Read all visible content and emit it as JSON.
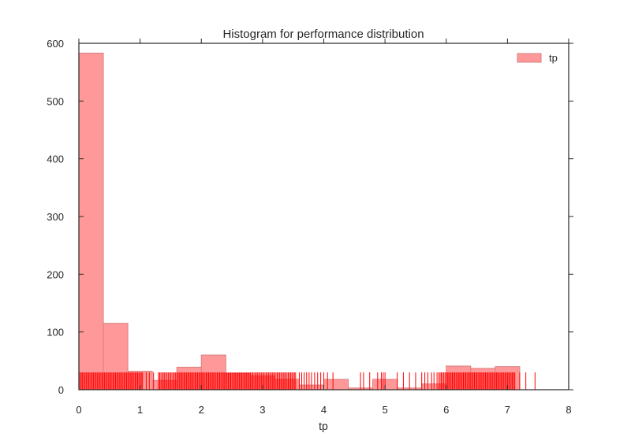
{
  "chart_data": {
    "type": "bar",
    "title": "Histogram for performance distribution",
    "xlabel": "tp",
    "ylabel": "",
    "xlim": [
      0,
      8
    ],
    "ylim": [
      0,
      600
    ],
    "xticks": [
      "0",
      "1",
      "2",
      "3",
      "4",
      "5",
      "6",
      "7",
      "8"
    ],
    "yticks": [
      "0",
      "100",
      "200",
      "300",
      "400",
      "500",
      "600"
    ],
    "legend": {
      "label": "tp",
      "position": "top-right"
    },
    "colors": {
      "bar": "#ff9999",
      "bar_edge": "#d98080",
      "rug": "#ff0000",
      "axis": "#262626"
    },
    "bins": [
      {
        "x0": 0.0,
        "x1": 0.4,
        "count": 583
      },
      {
        "x0": 0.4,
        "x1": 0.8,
        "count": 115
      },
      {
        "x0": 0.8,
        "x1": 1.2,
        "count": 32
      },
      {
        "x0": 1.2,
        "x1": 1.6,
        "count": 16
      },
      {
        "x0": 1.6,
        "x1": 2.0,
        "count": 39
      },
      {
        "x0": 2.0,
        "x1": 2.4,
        "count": 60
      },
      {
        "x0": 2.4,
        "x1": 2.8,
        "count": 28
      },
      {
        "x0": 2.8,
        "x1": 3.2,
        "count": 24
      },
      {
        "x0": 3.2,
        "x1": 3.6,
        "count": 18
      },
      {
        "x0": 3.6,
        "x1": 4.0,
        "count": 8
      },
      {
        "x0": 4.0,
        "x1": 4.4,
        "count": 18
      },
      {
        "x0": 4.4,
        "x1": 4.8,
        "count": 3
      },
      {
        "x0": 4.8,
        "x1": 5.2,
        "count": 18
      },
      {
        "x0": 5.2,
        "x1": 5.6,
        "count": 3
      },
      {
        "x0": 5.6,
        "x1": 6.0,
        "count": 10
      },
      {
        "x0": 6.0,
        "x1": 6.4,
        "count": 41
      },
      {
        "x0": 6.4,
        "x1": 6.8,
        "count": 37
      },
      {
        "x0": 6.8,
        "x1": 7.2,
        "count": 40
      }
    ],
    "rug": {
      "height_value": 30,
      "dense_segments": [
        [
          0.0,
          1.05
        ],
        [
          1.3,
          3.55
        ],
        [
          5.88,
          7.12
        ]
      ],
      "dense_step": 0.02,
      "points": [
        1.1,
        1.15,
        1.22,
        3.6,
        3.64,
        3.68,
        3.72,
        3.76,
        3.8,
        3.85,
        3.9,
        3.95,
        4.0,
        4.06,
        4.15,
        4.6,
        4.65,
        4.75,
        4.88,
        4.94,
        4.97,
        5.0,
        5.2,
        5.3,
        5.4,
        5.5,
        5.6,
        5.65,
        5.7,
        5.76,
        5.8,
        5.85,
        7.2,
        7.3,
        7.45
      ]
    }
  }
}
